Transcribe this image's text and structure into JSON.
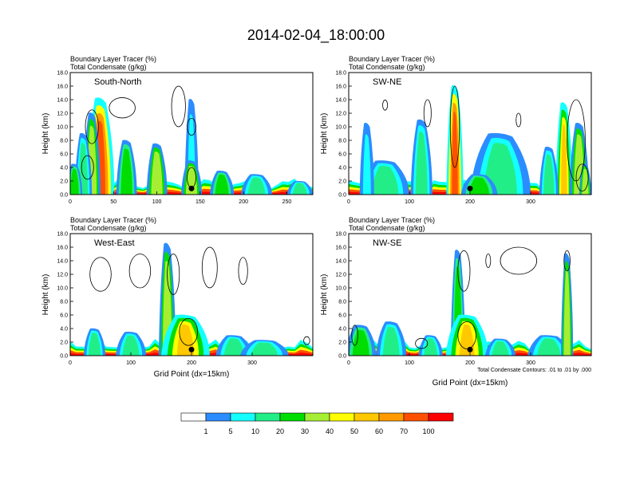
{
  "title": "2014-02-04_18:00:00",
  "colors": {
    "palette": [
      "#ffffff",
      "#2b8cff",
      "#14ffff",
      "#22ee88",
      "#00dd00",
      "#a6ee33",
      "#ffff00",
      "#ffc800",
      "#ff9a00",
      "#ff5000",
      "#ff0000"
    ],
    "contour": "#000000"
  },
  "legend": {
    "labels": [
      "1",
      "5",
      "10",
      "20",
      "30",
      "40",
      "50",
      "60",
      "70",
      "100"
    ]
  },
  "chart_data": [
    {
      "type": "heatmap",
      "name": "South-North",
      "field_label": "Boundary Layer Tracer   (%)",
      "contour_label": "Total Condensate   (g/kg)",
      "ylabel": "Height (km)",
      "xlabel": "",
      "xlim": [
        0,
        280
      ],
      "ylim": [
        0,
        18
      ],
      "xticks": [
        "0",
        "50",
        "100",
        "150",
        "200",
        "250"
      ],
      "xtick_values": [
        0,
        50,
        100,
        150,
        200,
        250
      ],
      "yticks": [
        "0.0",
        "2.0",
        "4.0",
        "6.0",
        "8.0",
        "10.0",
        "12.0",
        "14.0",
        "16.0",
        "18.0"
      ],
      "marker_x": 140,
      "plumes": [
        {
          "x": 35,
          "w": 16,
          "top": 14.2,
          "v": 60
        },
        {
          "x": 25,
          "w": 10,
          "top": 12,
          "v": 30
        },
        {
          "x": 15,
          "w": 10,
          "top": 9,
          "v": 10
        },
        {
          "x": 5,
          "w": 9,
          "top": 4.5,
          "v": 20
        },
        {
          "x": 65,
          "w": 12,
          "top": 8,
          "v": 20
        },
        {
          "x": 100,
          "w": 12,
          "top": 7.5,
          "v": 30
        },
        {
          "x": 140,
          "w": 8,
          "top": 14,
          "v": 5
        },
        {
          "x": 140,
          "w": 12,
          "top": 5,
          "v": 30
        },
        {
          "x": 175,
          "w": 14,
          "top": 3.5,
          "v": 20
        },
        {
          "x": 215,
          "w": 18,
          "top": 3,
          "v": 10
        },
        {
          "x": 265,
          "w": 15,
          "top": 2,
          "v": 10
        }
      ],
      "clouds": [
        {
          "x": 25,
          "y": 10,
          "w": 15,
          "h": 5
        },
        {
          "x": 60,
          "y": 12.8,
          "w": 30,
          "h": 3
        },
        {
          "x": 125,
          "y": 13,
          "w": 16,
          "h": 6
        },
        {
          "x": 140,
          "y": 10,
          "w": 10,
          "h": 2.5
        },
        {
          "x": 20,
          "y": 4,
          "w": 14,
          "h": 3.5
        },
        {
          "x": 140,
          "y": 2.5,
          "w": 10,
          "h": 3
        }
      ]
    },
    {
      "type": "heatmap",
      "name": "SW-NE",
      "field_label": "Boundary Layer Tracer   (%)",
      "contour_label": "Total Condensate   (g/kg)",
      "ylabel": "Height (km)",
      "xlabel": "",
      "xlim": [
        0,
        400
      ],
      "ylim": [
        0,
        18
      ],
      "xticks": [
        "0",
        "100",
        "200",
        "300"
      ],
      "xtick_values": [
        0,
        100,
        200,
        300
      ],
      "yticks": [
        "0.0",
        "2.0",
        "4.0",
        "6.0",
        "8.0",
        "10.0",
        "12.0",
        "14.0",
        "16.0",
        "18.0"
      ],
      "marker_x": 200,
      "plumes": [
        {
          "x": 175,
          "w": 14,
          "top": 16,
          "v": 60
        },
        {
          "x": 60,
          "w": 40,
          "top": 5,
          "v": 10
        },
        {
          "x": 30,
          "w": 12,
          "top": 10.5,
          "v": 5
        },
        {
          "x": 120,
          "w": 18,
          "top": 11,
          "v": 10
        },
        {
          "x": 250,
          "w": 50,
          "top": 9,
          "v": 10
        },
        {
          "x": 355,
          "w": 14,
          "top": 13.5,
          "v": 40
        },
        {
          "x": 380,
          "w": 16,
          "top": 10.5,
          "v": 30
        },
        {
          "x": 330,
          "w": 16,
          "top": 7,
          "v": 10
        },
        {
          "x": 390,
          "w": 10,
          "top": 4.5,
          "v": 30
        },
        {
          "x": 215,
          "w": 30,
          "top": 3,
          "v": 20
        }
      ],
      "clouds": [
        {
          "x": 175,
          "y": 10,
          "w": 15,
          "h": 12
        },
        {
          "x": 130,
          "y": 12,
          "w": 12,
          "h": 4
        },
        {
          "x": 375,
          "y": 8,
          "w": 30,
          "h": 12
        },
        {
          "x": 60,
          "y": 13.2,
          "w": 8,
          "h": 1.5
        },
        {
          "x": 280,
          "y": 11,
          "w": 8,
          "h": 2
        },
        {
          "x": 385,
          "y": 2.5,
          "w": 20,
          "h": 4
        }
      ]
    },
    {
      "type": "heatmap",
      "name": "West-East",
      "field_label": "Boundary Layer Tracer   (%)",
      "contour_label": "Total Condensate   (g/kg)",
      "ylabel": "Height (km)",
      "xlabel": "Grid Point (dx=15km)",
      "xlim": [
        0,
        400
      ],
      "ylim": [
        0,
        18
      ],
      "xticks": [
        "0",
        "100",
        "200",
        "300"
      ],
      "xtick_values": [
        0,
        100,
        200,
        300
      ],
      "yticks": [
        "0.0",
        "2.0",
        "4.0",
        "6.0",
        "8.0",
        "10.0",
        "12.0",
        "14.0",
        "16.0",
        "18.0"
      ],
      "marker_x": 200,
      "plumes": [
        {
          "x": 160,
          "w": 14,
          "top": 16.5,
          "v": 30
        },
        {
          "x": 190,
          "w": 40,
          "top": 6,
          "v": 40
        },
        {
          "x": 40,
          "w": 18,
          "top": 4,
          "v": 10
        },
        {
          "x": 100,
          "w": 25,
          "top": 3.5,
          "v": 10
        },
        {
          "x": 270,
          "w": 30,
          "top": 3,
          "v": 10
        },
        {
          "x": 320,
          "w": 40,
          "top": 2.3,
          "v": 10
        }
      ],
      "clouds": [
        {
          "x": 50,
          "y": 12,
          "w": 35,
          "h": 5
        },
        {
          "x": 115,
          "y": 12.5,
          "w": 35,
          "h": 5
        },
        {
          "x": 170,
          "y": 12,
          "w": 20,
          "h": 6
        },
        {
          "x": 230,
          "y": 13,
          "w": 25,
          "h": 6
        },
        {
          "x": 285,
          "y": 12.5,
          "w": 15,
          "h": 4
        },
        {
          "x": 195,
          "y": 3.5,
          "w": 30,
          "h": 4
        },
        {
          "x": 390,
          "y": 2.2,
          "w": 10,
          "h": 1.2
        }
      ]
    },
    {
      "type": "heatmap",
      "name": "NW-SE",
      "field_label": "Boundary Layer Tracer   (%)",
      "contour_label": "Total Condensate   (g/kg)",
      "ylabel": "Height (km)",
      "xlabel": "Grid Point (dx=15km)",
      "contour_note": "Total Condensate Contours: .01 to .01 by .000",
      "xlim": [
        0,
        400
      ],
      "ylim": [
        0,
        18
      ],
      "xticks": [
        "0",
        "100",
        "200",
        "300"
      ],
      "xtick_values": [
        0,
        100,
        200,
        300
      ],
      "yticks": [
        "0.0",
        "2.0",
        "4.0",
        "6.0",
        "8.0",
        "10.0",
        "12.0",
        "14.0",
        "16.0",
        "18.0"
      ],
      "marker_x": 200,
      "plumes": [
        {
          "x": 180,
          "w": 12,
          "top": 15.5,
          "v": 20
        },
        {
          "x": 195,
          "w": 35,
          "top": 6,
          "v": 40
        },
        {
          "x": 20,
          "w": 25,
          "top": 4.5,
          "v": 20
        },
        {
          "x": 70,
          "w": 25,
          "top": 5,
          "v": 10
        },
        {
          "x": 135,
          "w": 20,
          "top": 3,
          "v": 10
        },
        {
          "x": 330,
          "w": 35,
          "top": 3,
          "v": 10
        },
        {
          "x": 250,
          "w": 25,
          "top": 2.5,
          "v": 10
        },
        {
          "x": 360,
          "w": 10,
          "top": 15,
          "v": 30
        }
      ],
      "clouds": [
        {
          "x": 190,
          "y": 12.5,
          "w": 20,
          "h": 6
        },
        {
          "x": 280,
          "y": 14,
          "w": 60,
          "h": 4
        },
        {
          "x": 360,
          "y": 14,
          "w": 10,
          "h": 3
        },
        {
          "x": 230,
          "y": 14,
          "w": 8,
          "h": 2
        },
        {
          "x": 195,
          "y": 3,
          "w": 30,
          "h": 4
        },
        {
          "x": 10,
          "y": 3,
          "w": 10,
          "h": 3
        },
        {
          "x": 120,
          "y": 1.8,
          "w": 20,
          "h": 1.5
        }
      ]
    }
  ]
}
